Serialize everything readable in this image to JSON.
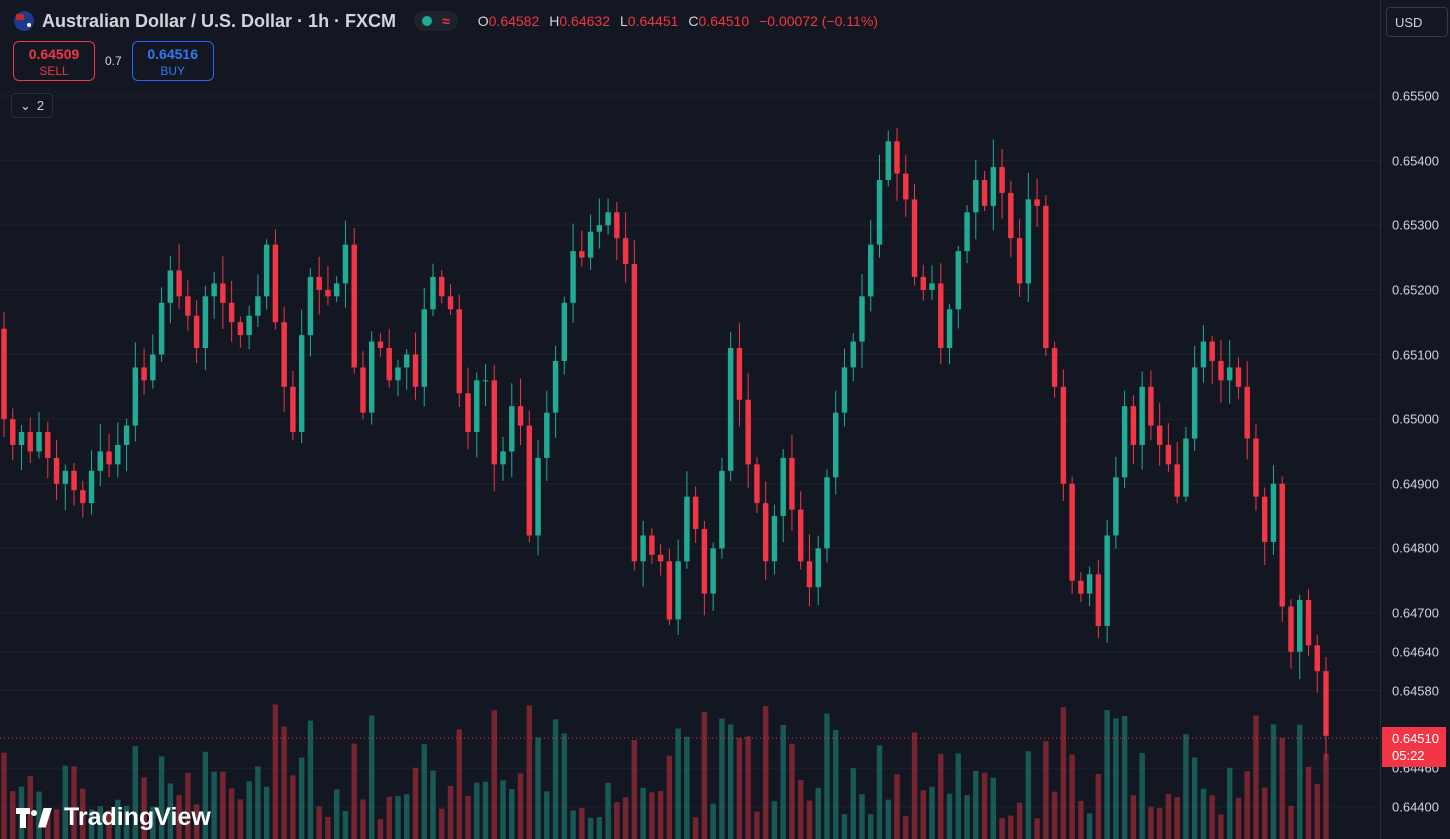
{
  "legend": {
    "title": "Australian Dollar / U.S. Dollar · 1h · FXCM",
    "ohlc": [
      {
        "k": "O",
        "v": "0.64582"
      },
      {
        "k": "H",
        "v": "0.64632"
      },
      {
        "k": "L",
        "v": "0.64451"
      },
      {
        "k": "C",
        "v": "0.64510"
      },
      {
        "k": "",
        "v": "−0.00072 (−0.11%)"
      }
    ]
  },
  "trade": {
    "sell_price": "0.64509",
    "sell_label": "SELL",
    "spread": "0.7",
    "buy_price": "0.64516",
    "buy_label": "BUY"
  },
  "indicators_toggle": {
    "count": "2"
  },
  "currency": "USD",
  "last_price": {
    "value": "0.64510",
    "countdown": "05:22"
  },
  "logo_text": "TradingView",
  "colors": {
    "up": "#22ab94",
    "down": "#f23645",
    "background": "#131722",
    "grid": "#1e222d"
  },
  "chart_data": {
    "type": "candlestick",
    "symbol": "AUDUSD",
    "interval": "1h",
    "y_ticks": [
      "0.65500",
      "0.65400",
      "0.65300",
      "0.65200",
      "0.65100",
      "0.65000",
      "0.64900",
      "0.64800",
      "0.64700",
      "0.64640",
      "0.64580",
      "0.64460",
      "0.64400"
    ],
    "ylim": [
      0.6437,
      0.6558
    ],
    "close_approx": [
      0.65,
      0.6496,
      0.6498,
      0.6495,
      0.6498,
      0.6494,
      0.649,
      0.6492,
      0.6489,
      0.6487,
      0.6492,
      0.6495,
      0.6493,
      0.6496,
      0.6499,
      0.6508,
      0.6506,
      0.651,
      0.6518,
      0.6523,
      0.6519,
      0.6516,
      0.6511,
      0.6519,
      0.6521,
      0.6518,
      0.6515,
      0.6513,
      0.6516,
      0.6519,
      0.6527,
      0.6515,
      0.6505,
      0.6498,
      0.6513,
      0.6522,
      0.652,
      0.6519,
      0.6521,
      0.6527,
      0.6508,
      0.6501,
      0.6512,
      0.6511,
      0.6506,
      0.6508,
      0.651,
      0.6505,
      0.6517,
      0.6522,
      0.6519,
      0.6517,
      0.6504,
      0.6498,
      0.6506,
      0.6506,
      0.6493,
      0.6495,
      0.6502,
      0.6499,
      0.6482,
      0.6494,
      0.6501,
      0.6509,
      0.6518,
      0.6526,
      0.6525,
      0.6529,
      0.653,
      0.6532,
      0.6528,
      0.6524,
      0.6478,
      0.6482,
      0.6479,
      0.6478,
      0.6469,
      0.6478,
      0.6488,
      0.6483,
      0.6473,
      0.648,
      0.6492,
      0.6511,
      0.6503,
      0.6493,
      0.6487,
      0.6478,
      0.6485,
      0.6494,
      0.6486,
      0.6478,
      0.6474,
      0.648,
      0.6491,
      0.6501,
      0.6508,
      0.6512,
      0.6519,
      0.6527,
      0.6537,
      0.6543,
      0.6538,
      0.6534,
      0.6522,
      0.652,
      0.6521,
      0.6511,
      0.6517,
      0.6526,
      0.6532,
      0.6537,
      0.6533,
      0.6539,
      0.6535,
      0.6528,
      0.6521,
      0.6534,
      0.6533,
      0.6511,
      0.6505,
      0.649,
      0.6475,
      0.6473,
      0.6476,
      0.6468,
      0.6482,
      0.6491,
      0.6502,
      0.6496,
      0.6505,
      0.6499,
      0.6496,
      0.6493,
      0.6488,
      0.6497,
      0.6508,
      0.6512,
      0.6509,
      0.6506,
      0.6508,
      0.6505,
      0.6497,
      0.6488,
      0.6481,
      0.649,
      0.6471,
      0.6464,
      0.6472,
      0.6465,
      0.6461,
      0.6451
    ]
  }
}
